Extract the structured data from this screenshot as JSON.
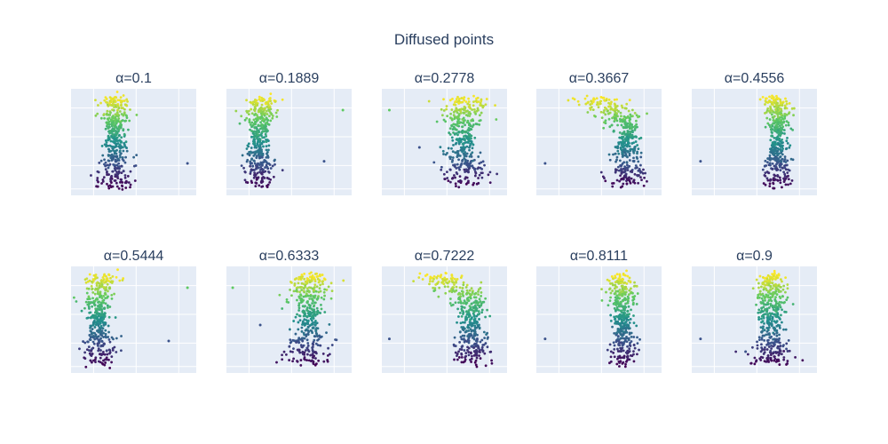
{
  "chart_data": {
    "type": "scatter",
    "title": "Diffused points",
    "colorscale": [
      "#440154",
      "#3b528b",
      "#21918c",
      "#5ec962",
      "#fde725"
    ],
    "background": "#e5ecf6",
    "grid": true,
    "grid_color": "#ffffff",
    "panels": [
      {
        "title": "α=0.1",
        "label": "α=0.1",
        "distribution": {
          "center": 0.36,
          "top_shift": 0.0,
          "width_bot": 0.16,
          "width_top": 0.14,
          "outliers": [
            [
              0.93,
              0.3
            ]
          ]
        }
      },
      {
        "title": "α=0.1889",
        "label": "α=0.1889",
        "distribution": {
          "center": 0.26,
          "top_shift": 0.06,
          "width_bot": 0.16,
          "width_top": 0.14,
          "outliers": [
            [
              0.78,
              0.32
            ],
            [
              0.93,
              0.8
            ]
          ]
        }
      },
      {
        "title": "α=0.2778",
        "label": "α=0.2778",
        "distribution": {
          "center": 0.65,
          "top_shift": 0.0,
          "width_bot": 0.21,
          "width_top": 0.2,
          "outliers": [
            [
              0.06,
              0.8
            ],
            [
              0.3,
              0.45
            ]
          ]
        }
      },
      {
        "title": "α=0.3667",
        "label": "α=0.3667",
        "distribution": {
          "center": 0.72,
          "top_shift": -0.26,
          "width_bot": 0.16,
          "width_top": 0.22,
          "outliers": [
            [
              0.07,
              0.3
            ]
          ]
        }
      },
      {
        "title": "α=0.4556",
        "label": "α=0.4556",
        "distribution": {
          "center": 0.69,
          "top_shift": -0.03,
          "width_bot": 0.16,
          "width_top": 0.12,
          "outliers": [
            [
              0.07,
              0.32
            ]
          ]
        }
      },
      {
        "title": "α=0.5444",
        "label": "α=0.5444",
        "distribution": {
          "center": 0.22,
          "top_shift": 0.05,
          "width_bot": 0.16,
          "width_top": 0.14,
          "outliers": [
            [
              0.78,
              0.3
            ],
            [
              0.93,
              0.8
            ]
          ]
        }
      },
      {
        "title": "α=0.6333",
        "label": "α=0.6333",
        "distribution": {
          "center": 0.66,
          "top_shift": 0.0,
          "width_bot": 0.21,
          "width_top": 0.2,
          "outliers": [
            [
              0.05,
              0.8
            ],
            [
              0.27,
              0.45
            ]
          ]
        }
      },
      {
        "title": "α=0.7222",
        "label": "α=0.7222",
        "distribution": {
          "center": 0.72,
          "top_shift": -0.26,
          "width_bot": 0.16,
          "width_top": 0.22,
          "outliers": [
            [
              0.06,
              0.32
            ]
          ]
        }
      },
      {
        "title": "α=0.8111",
        "label": "α=0.8111",
        "distribution": {
          "center": 0.69,
          "top_shift": -0.03,
          "width_bot": 0.16,
          "width_top": 0.12,
          "outliers": [
            [
              0.07,
              0.32
            ]
          ]
        }
      },
      {
        "title": "α=0.9",
        "label": "α=0.9",
        "distribution": {
          "center": 0.63,
          "top_shift": 0.0,
          "width_bot": 0.2,
          "width_top": 0.15,
          "outliers": [
            [
              0.07,
              0.32
            ],
            [
              0.43,
              0.2
            ]
          ]
        }
      }
    ]
  }
}
